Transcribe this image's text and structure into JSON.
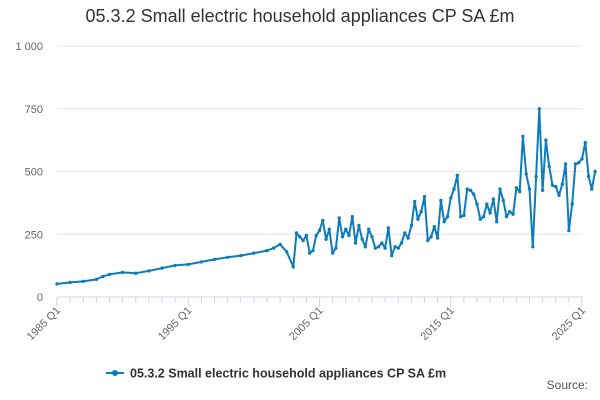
{
  "chart_data": {
    "type": "line",
    "title": "05.3.2 Small electric household appliances CP SA £m",
    "xlabel": "",
    "ylabel": "",
    "x_range": [
      "1985 Q1",
      "2025 Q1"
    ],
    "ylim": [
      0,
      1000
    ],
    "y_ticks": [
      "0",
      "250",
      "500",
      "750",
      "1 000"
    ],
    "x_ticks": [
      "1985 Q1",
      "1995 Q1",
      "2005 Q1",
      "2015 Q1",
      "2025 Q1"
    ],
    "grid": "horizontal",
    "legend_position": "bottom",
    "color": "#0d7cb9",
    "series": [
      {
        "name": "05.3.2 Small electric household appliances CP SA £m",
        "values": [
          [
            "1985 Q1",
            52
          ],
          [
            "1986 Q1",
            58
          ],
          [
            "1987 Q1",
            62
          ],
          [
            "1988 Q1",
            70
          ],
          [
            "1988 Q3",
            82
          ],
          [
            "1989 Q1",
            90
          ],
          [
            "1990 Q1",
            98
          ],
          [
            "1991 Q1",
            95
          ],
          [
            "1992 Q1",
            104
          ],
          [
            "1993 Q1",
            115
          ],
          [
            "1994 Q1",
            126
          ],
          [
            "1995 Q1",
            130
          ],
          [
            "1996 Q1",
            140
          ],
          [
            "1997 Q1",
            150
          ],
          [
            "1998 Q1",
            158
          ],
          [
            "1999 Q1",
            165
          ],
          [
            "2000 Q1",
            175
          ],
          [
            "2001 Q1",
            185
          ],
          [
            "2001 Q3",
            195
          ],
          [
            "2002 Q1",
            210
          ],
          [
            "2002 Q3",
            180
          ],
          [
            "2003 Q1",
            120
          ],
          [
            "2003 Q2",
            255
          ],
          [
            "2003 Q3",
            240
          ],
          [
            "2003 Q4",
            225
          ],
          [
            "2004 Q1",
            245
          ],
          [
            "2004 Q2",
            175
          ],
          [
            "2004 Q3",
            185
          ],
          [
            "2004 Q4",
            245
          ],
          [
            "2005 Q1",
            265
          ],
          [
            "2005 Q2",
            305
          ],
          [
            "2005 Q3",
            230
          ],
          [
            "2005 Q4",
            270
          ],
          [
            "2006 Q1",
            175
          ],
          [
            "2006 Q2",
            195
          ],
          [
            "2006 Q3",
            315
          ],
          [
            "2006 Q4",
            240
          ],
          [
            "2007 Q1",
            270
          ],
          [
            "2007 Q2",
            245
          ],
          [
            "2007 Q3",
            320
          ],
          [
            "2007 Q4",
            215
          ],
          [
            "2008 Q1",
            285
          ],
          [
            "2008 Q2",
            230
          ],
          [
            "2008 Q3",
            200
          ],
          [
            "2008 Q4",
            270
          ],
          [
            "2009 Q1",
            240
          ],
          [
            "2009 Q2",
            195
          ],
          [
            "2009 Q3",
            200
          ],
          [
            "2009 Q4",
            215
          ],
          [
            "2010 Q1",
            195
          ],
          [
            "2010 Q2",
            275
          ],
          [
            "2010 Q3",
            165
          ],
          [
            "2010 Q4",
            200
          ],
          [
            "2011 Q1",
            195
          ],
          [
            "2011 Q2",
            215
          ],
          [
            "2011 Q3",
            255
          ],
          [
            "2011 Q4",
            235
          ],
          [
            "2012 Q1",
            285
          ],
          [
            "2012 Q2",
            380
          ],
          [
            "2012 Q3",
            310
          ],
          [
            "2012 Q4",
            340
          ],
          [
            "2013 Q1",
            400
          ],
          [
            "2013 Q2",
            225
          ],
          [
            "2013 Q3",
            240
          ],
          [
            "2013 Q4",
            280
          ],
          [
            "2014 Q1",
            235
          ],
          [
            "2014 Q2",
            385
          ],
          [
            "2014 Q3",
            300
          ],
          [
            "2014 Q4",
            320
          ],
          [
            "2015 Q1",
            395
          ],
          [
            "2015 Q2",
            430
          ],
          [
            "2015 Q3",
            485
          ],
          [
            "2015 Q4",
            320
          ],
          [
            "2016 Q1",
            325
          ],
          [
            "2016 Q2",
            430
          ],
          [
            "2016 Q3",
            425
          ],
          [
            "2016 Q4",
            410
          ],
          [
            "2017 Q1",
            370
          ],
          [
            "2017 Q2",
            310
          ],
          [
            "2017 Q3",
            320
          ],
          [
            "2017 Q4",
            370
          ],
          [
            "2018 Q1",
            335
          ],
          [
            "2018 Q2",
            390
          ],
          [
            "2018 Q3",
            300
          ],
          [
            "2018 Q4",
            430
          ],
          [
            "2019 Q1",
            385
          ],
          [
            "2019 Q2",
            320
          ],
          [
            "2019 Q3",
            340
          ],
          [
            "2019 Q4",
            330
          ],
          [
            "2020 Q1",
            435
          ],
          [
            "2020 Q2",
            420
          ],
          [
            "2020 Q3",
            640
          ],
          [
            "2020 Q4",
            490
          ],
          [
            "2021 Q1",
            430
          ],
          [
            "2021 Q2",
            200
          ],
          [
            "2021 Q3",
            480
          ],
          [
            "2021 Q4",
            750
          ],
          [
            "2022 Q1",
            425
          ],
          [
            "2022 Q2",
            625
          ],
          [
            "2022 Q3",
            520
          ],
          [
            "2022 Q4",
            445
          ],
          [
            "2023 Q1",
            440
          ],
          [
            "2023 Q2",
            405
          ],
          [
            "2023 Q3",
            450
          ],
          [
            "2023 Q4",
            530
          ],
          [
            "2024 Q1",
            265
          ],
          [
            "2024 Q2",
            370
          ],
          [
            "2024 Q3",
            530
          ],
          [
            "2024 Q4",
            535
          ],
          [
            "2025 Q1",
            550
          ],
          [
            "2025 Q2",
            615
          ],
          [
            "2025 Q3",
            480
          ],
          [
            "2025 Q4",
            430
          ],
          [
            "2026 Q1",
            500
          ]
        ]
      }
    ]
  },
  "source_label": "Source:"
}
